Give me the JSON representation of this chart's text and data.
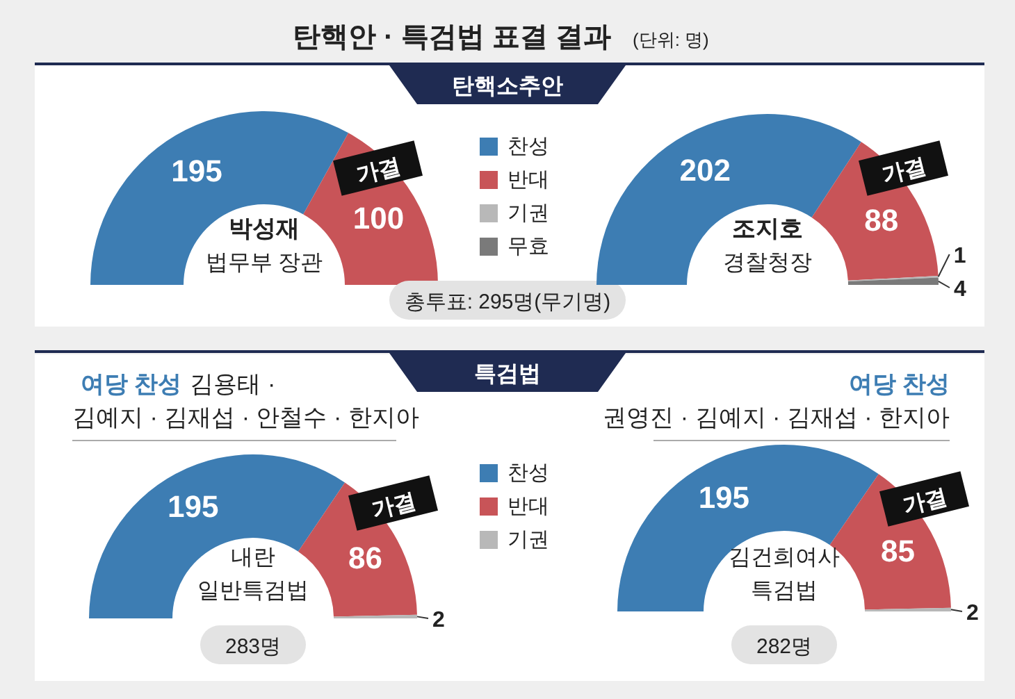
{
  "chart_data": [
    {
      "type": "donut",
      "title": "탄핵안 · 특검법 표결 결과",
      "categories": [
        "찬성",
        "반대",
        "기권",
        "무효"
      ],
      "values": [
        195,
        100,
        0,
        0
      ],
      "colors": [
        "#3d7db3",
        "#c85458",
        "#b8b8b8",
        "#7a7a7a"
      ],
      "value_labels": [
        "195",
        "100",
        null,
        null
      ],
      "legend": "right",
      "annotations": [
        "탄핵소추안",
        "박성재",
        "법무부 장관",
        "가결",
        "총투표: 295명(무기명)"
      ]
    },
    {
      "type": "donut",
      "subtitle": "(단위: 명)",
      "categories": [
        null,
        null,
        null,
        null
      ],
      "values": [
        202,
        88,
        1,
        4
      ],
      "colors": [
        "#3d7db3",
        "#c85458",
        "#b8b8b8",
        "#7a7a7a"
      ],
      "data_labels": true,
      "annotations": [
        "조지호",
        "경찰청장",
        "가결"
      ]
    },
    {
      "type": "donut",
      "categories": [
        "찬성",
        "반대",
        "기권"
      ],
      "values": [
        195,
        86,
        2
      ],
      "colors": [
        "#3d7db3",
        "#c85458",
        "#b8b8b8"
      ],
      "data_labels": true,
      "legend": "right",
      "annotations": [
        "특검법",
        "여당 찬성",
        "김용태 ·",
        "김예지 · 김재섭 · 안철수 · 한지아",
        "내란",
        "일반특검법",
        "가결",
        "283명"
      ]
    },
    {
      "type": "donut",
      "categories": [
        null,
        null,
        null
      ],
      "values": [
        195,
        85,
        2
      ],
      "colors": [
        "#3d7db3",
        "#c85458",
        "#b8b8b8"
      ],
      "data_labels": true,
      "annotations": [
        "여당 찬성",
        "권영진 · 김예지 · 김재섭 · 한지아",
        "김건희여사",
        "특검법",
        "가결",
        "282명"
      ]
    }
  ]
}
